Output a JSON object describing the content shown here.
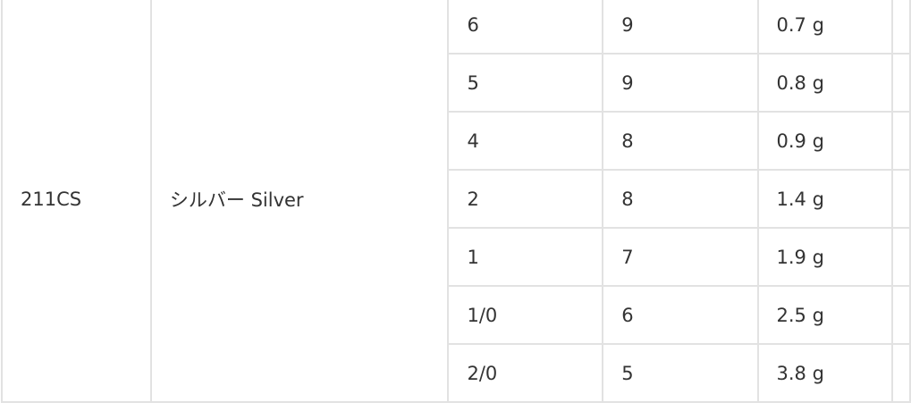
{
  "product": {
    "model": "211CS",
    "color": "シルバー Silver"
  },
  "rows": [
    {
      "size": "6",
      "qty": "9",
      "weight": "0.7 g"
    },
    {
      "size": "5",
      "qty": "9",
      "weight": "0.8 g"
    },
    {
      "size": "4",
      "qty": "8",
      "weight": "0.9 g"
    },
    {
      "size": "2",
      "qty": "8",
      "weight": "1.4 g"
    },
    {
      "size": "1",
      "qty": "7",
      "weight": "1.9 g"
    },
    {
      "size": "1/0",
      "qty": "6",
      "weight": "2.5 g"
    },
    {
      "size": "2/0",
      "qty": "5",
      "weight": "3.8 g"
    }
  ]
}
